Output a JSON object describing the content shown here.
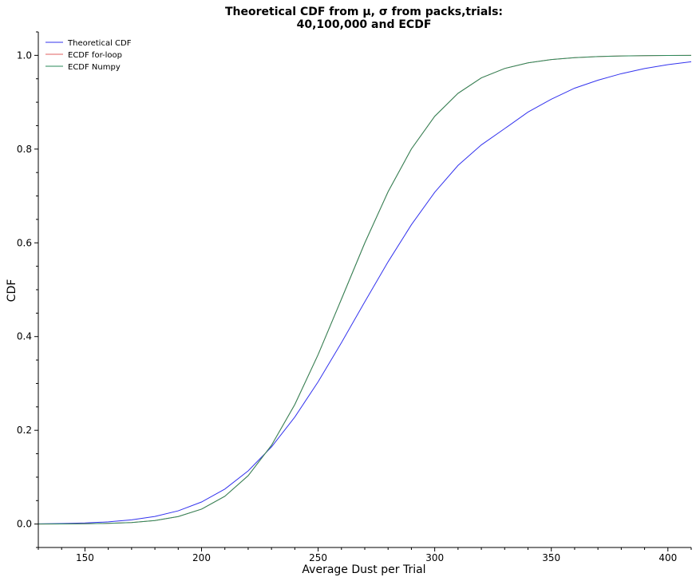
{
  "chart_data": {
    "type": "line",
    "title": "Theoretical CDF from μ, σ from packs,trials:",
    "subtitle": "40,100,000 and ECDF",
    "xlabel": "Average Dust per Trial",
    "ylabel": "CDF",
    "xlim": [
      130,
      410
    ],
    "ylim": [
      -0.05,
      1.05
    ],
    "x_ticks": [
      150,
      200,
      250,
      300,
      350,
      400
    ],
    "y_ticks": [
      0.0,
      0.2,
      0.4,
      0.6,
      0.8,
      1.0
    ],
    "x_tick_labels": [
      "150",
      "200",
      "250",
      "300",
      "350",
      "400"
    ],
    "y_tick_labels": [
      "0.0",
      "0.2",
      "0.4",
      "0.6",
      "0.8",
      "1.0"
    ],
    "grid": false,
    "legend_position": "top-left",
    "series": [
      {
        "name": "Theoretical CDF",
        "color": "#3333ee",
        "x": [
          130,
          140,
          150,
          160,
          170,
          180,
          190,
          200,
          210,
          220,
          230,
          240,
          250,
          260,
          270,
          280,
          290,
          300,
          310,
          320,
          330,
          340,
          350,
          360,
          370,
          380,
          390,
          400,
          410
        ],
        "y": [
          0.0005,
          0.0011,
          0.0023,
          0.0046,
          0.0089,
          0.0162,
          0.0282,
          0.047,
          0.0747,
          0.1135,
          0.1645,
          0.2283,
          0.3035,
          0.387,
          0.4741,
          0.5595,
          0.6387,
          0.7078,
          0.7652,
          0.809,
          0.8437,
          0.8789,
          0.9065,
          0.93,
          0.947,
          0.9609,
          0.9718,
          0.9802,
          0.9863
        ]
      },
      {
        "name": "ECDF for-loop",
        "color": "#e06060",
        "x": [
          130,
          140,
          150,
          160,
          170,
          180,
          190,
          200,
          210,
          220,
          230,
          240,
          250,
          260,
          270,
          280,
          290,
          300,
          310,
          320,
          330,
          340,
          350,
          360,
          370,
          380,
          390,
          400,
          410
        ],
        "y": [
          0.0,
          0.0002,
          0.0006,
          0.0014,
          0.0033,
          0.0075,
          0.016,
          0.0318,
          0.0592,
          0.1032,
          0.168,
          0.255,
          0.3616,
          0.48,
          0.5996,
          0.709,
          0.8004,
          0.87,
          0.919,
          0.952,
          0.972,
          0.984,
          0.991,
          0.995,
          0.9975,
          0.9988,
          0.9994,
          0.9998,
          1.0
        ]
      },
      {
        "name": "ECDF Numpy",
        "color": "#2a8a5a",
        "x": [
          130,
          140,
          150,
          160,
          170,
          180,
          190,
          200,
          210,
          220,
          230,
          240,
          250,
          260,
          270,
          280,
          290,
          300,
          310,
          320,
          330,
          340,
          350,
          360,
          370,
          380,
          390,
          400,
          410
        ],
        "y": [
          0.0,
          0.0002,
          0.0006,
          0.0014,
          0.0033,
          0.0075,
          0.016,
          0.0318,
          0.0592,
          0.1032,
          0.168,
          0.255,
          0.3616,
          0.48,
          0.5996,
          0.709,
          0.8004,
          0.87,
          0.919,
          0.952,
          0.972,
          0.984,
          0.991,
          0.995,
          0.9975,
          0.9988,
          0.9994,
          0.9998,
          1.0
        ]
      }
    ]
  }
}
